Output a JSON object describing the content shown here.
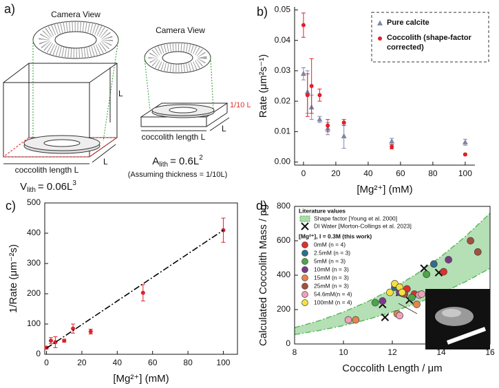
{
  "diagram": {
    "label": "a)",
    "left": {
      "title": "Camera View",
      "height": "L",
      "depth": "L",
      "width": "coccolith length L",
      "formula": {
        "symbol": "V",
        "subscript": "lith",
        "rhs": "= 0.06L",
        "exponent": "3"
      }
    },
    "right": {
      "title": "Camera View",
      "thickness": "1/10 L",
      "depth": "L",
      "width": "coccolith length L",
      "formula": {
        "symbol": "A",
        "subscript": "lith",
        "rhs": "= 0.6L",
        "exponent": "2"
      },
      "note": "(Assuming thickness = 1/10L)"
    }
  },
  "chart_data": [
    {
      "type": "scatter",
      "label": "b)",
      "x_label": "[Mg²⁺] (mM)",
      "y_label": "Rate (μm²s⁻¹)",
      "xlim": [
        -5.5,
        106
      ],
      "ylim": [
        -0.001,
        0.051
      ],
      "xticks": [
        0,
        20,
        40,
        60,
        80,
        100
      ],
      "yticks": [
        {
          "value": 0,
          "label": "0.00"
        },
        0.01,
        0.02,
        0.03,
        0.04,
        0.05
      ],
      "legend": "top-right",
      "series": [
        {
          "name": "Pure calcite",
          "color": "#7f86a8",
          "marker": "triangle",
          "x": [
            0,
            2.5,
            5,
            10,
            15,
            25,
            54.6,
            100
          ],
          "values": [
            0.029,
            0.023,
            0.018,
            0.014,
            0.011,
            0.0085,
            0.0068,
            0.0065
          ],
          "errors": [
            0.002,
            0.007,
            0.004,
            0.001,
            0.002,
            0.004,
            0.001,
            0.001
          ]
        },
        {
          "name": "Coccolith (shape-factor corrected)",
          "color": "#e0202a",
          "marker": "circle",
          "x": [
            0,
            2.5,
            5,
            10,
            15,
            25,
            54.6,
            100
          ],
          "values": [
            0.045,
            0.022,
            0.025,
            0.022,
            0.012,
            0.013,
            0.005,
            0.0025
          ],
          "errors": [
            0.004,
            0.007,
            0.009,
            0.002,
            0.002,
            0.001,
            0.0007,
            0.0003
          ]
        }
      ]
    },
    {
      "type": "scatter",
      "label": "c)",
      "x_label": "[Mg²⁺] (mM)",
      "y_label": "1/Rate (μm⁻²s)",
      "xlim": [
        -1,
        108
      ],
      "ylim": [
        0,
        500
      ],
      "xticks": [
        0,
        20,
        40,
        60,
        80,
        100
      ],
      "yticks": [
        0,
        100,
        200,
        300,
        400,
        500
      ],
      "series": [
        {
          "color": "#e0202a",
          "marker": "circle",
          "x": [
            0,
            2.5,
            5,
            10,
            15,
            25,
            54.6,
            100
          ],
          "values": [
            22,
            45,
            40,
            45,
            85,
            75,
            203,
            410
          ],
          "errors": [
            4,
            10,
            18,
            5,
            15,
            8,
            27,
            40
          ]
        },
        {
          "color": "#000000",
          "marker": "none",
          "style": "dashdot",
          "x": [
            0,
            100
          ],
          "values": [
            20,
            410
          ]
        }
      ]
    },
    {
      "type": "scatter",
      "label": "d)",
      "x_label": "Coccolith Length / μm",
      "y_label": "Calculated Coccolith Mass / pg",
      "xlim": [
        8,
        16
      ],
      "ylim": [
        0,
        800
      ],
      "xticks": [
        8,
        10,
        12,
        14,
        16
      ],
      "yticks": [
        0,
        200,
        400,
        600,
        800
      ],
      "legend": "top-left",
      "legend_title": "Literature values",
      "legend_subtitle": "[Mg²⁺], I = 0.3M  (this work)",
      "band": {
        "name": "Shape factor [Young et al. 2000]",
        "color": "#5cb85c",
        "x": [
          8,
          9,
          10,
          11,
          12,
          13,
          14,
          15,
          16
        ],
        "lower": [
          55,
          78,
          107,
          143,
          186,
          236,
          295,
          362,
          440
        ],
        "upper": [
          95,
          135,
          186,
          247,
          321,
          408,
          509,
          626,
          760
        ]
      },
      "series": [
        {
          "name": "DI Water [Morton-Collings et al. 2023]",
          "color": "#111111",
          "marker": "x",
          "x": [
            11.6,
            11.7,
            12.1,
            12.3,
            12.7,
            13.3,
            13.9
          ],
          "values": [
            230,
            155,
            330,
            300,
            255,
            440,
            415
          ]
        },
        {
          "name": "0mM (n = 4)",
          "color": "#e0302a",
          "marker": "circle",
          "x": [
            12.6,
            12.9,
            13.5,
            14.1
          ],
          "values": [
            320,
            290,
            280,
            420
          ]
        },
        {
          "name": "2.5mM (n = 3)",
          "color": "#2e6e8a",
          "marker": "circle",
          "x": [
            12.1,
            12.4,
            13.7
          ],
          "values": [
            330,
            295,
            465
          ]
        },
        {
          "name": "5mM (n = 3)",
          "color": "#4aa64a",
          "marker": "circle",
          "x": [
            11.3,
            12.8,
            13.4
          ],
          "values": [
            240,
            270,
            405
          ]
        },
        {
          "name": "10mM (n = 3)",
          "color": "#7a3a8a",
          "marker": "circle",
          "x": [
            11.6,
            12.3,
            14.3
          ],
          "values": [
            250,
            300,
            490
          ]
        },
        {
          "name": "15mM (n = 3)",
          "color": "#e8844a",
          "marker": "circle",
          "x": [
            10.5,
            12.2,
            13.0
          ],
          "values": [
            140,
            175,
            230
          ]
        },
        {
          "name": "25mM (n = 3)",
          "color": "#a0523a",
          "marker": "circle",
          "x": [
            12.5,
            15.2,
            15.5
          ],
          "values": [
            290,
            600,
            535
          ]
        },
        {
          "name": "54.6mM(n = 4)",
          "color": "#f0a0b8",
          "marker": "circle",
          "x": [
            10.2,
            12.3,
            13.1,
            13.2
          ],
          "values": [
            140,
            165,
            285,
            290
          ]
        },
        {
          "name": "100mM (n = 4)",
          "color": "#f5e040",
          "marker": "circle",
          "x": [
            11.9,
            12.1,
            12.3,
            12.4
          ],
          "values": [
            300,
            350,
            330,
            300
          ]
        }
      ]
    }
  ]
}
